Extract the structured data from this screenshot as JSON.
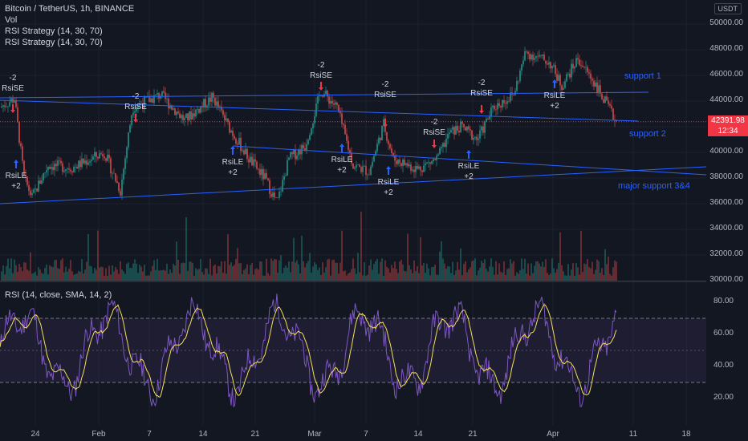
{
  "header": {
    "symbol_line": "Bitcoin / TetherUS, 1h, BINANCE",
    "indicator_vol": "Vol",
    "indicator_strategy_1": "RSI Strategy (14, 30, 70)",
    "indicator_strategy_2": "RSI Strategy (14, 30, 70)",
    "currency": "USDT"
  },
  "price_scale": [
    "50000.00",
    "48000.00",
    "46000.00",
    "44000.00",
    "42000.00",
    "40000.00",
    "38000.00",
    "36000.00",
    "34000.00",
    "32000.00",
    "30000.00"
  ],
  "last_price": {
    "value": "42391.98",
    "countdown": "12:34"
  },
  "rsi_panel": {
    "label": "RSI (14, close, SMA, 14, 2)",
    "scale": [
      "80.00",
      "60.00",
      "40.00",
      "20.00"
    ],
    "upper_band": 70,
    "lower_band": 30
  },
  "time_axis": [
    "24",
    "Feb",
    "7",
    "14",
    "21",
    "Mar",
    "7",
    "14",
    "21",
    "Apr",
    "11",
    "18"
  ],
  "drawings": [
    {
      "label": "support 1"
    },
    {
      "label": "support 2"
    },
    {
      "label": "major support 3&4"
    }
  ],
  "signals": [
    {
      "type": "short",
      "name": "RsiSE",
      "qty": "-2"
    },
    {
      "type": "long",
      "name": "RsiLE",
      "qty": "+2"
    },
    {
      "type": "short",
      "name": "RsiSE",
      "qty": "-2"
    },
    {
      "type": "long",
      "name": "RsiLE",
      "qty": "+2"
    },
    {
      "type": "short",
      "name": "RsiSE",
      "qty": "-2"
    },
    {
      "type": "long",
      "name": "RsiLE",
      "qty": "+2"
    },
    {
      "type": "short",
      "name": "RsiSE",
      "qty": "-2"
    },
    {
      "type": "long",
      "name": "RsiLE",
      "qty": "+2"
    },
    {
      "type": "short",
      "name": "RsiSE",
      "qty": "-2"
    },
    {
      "type": "long",
      "name": "RsiLE",
      "qty": "+2"
    },
    {
      "type": "short",
      "name": "RsiSE",
      "qty": "-2"
    },
    {
      "type": "long",
      "name": "RsiLE",
      "qty": "+2"
    }
  ],
  "colors": {
    "background": "#131722",
    "up": "#26a69a",
    "down": "#ef5350",
    "trendline": "#2962ff",
    "rsi_line": "#7e57c2",
    "rsi_ma": "#f7e05a",
    "sell": "#f23645",
    "buy": "#2962ff"
  }
}
